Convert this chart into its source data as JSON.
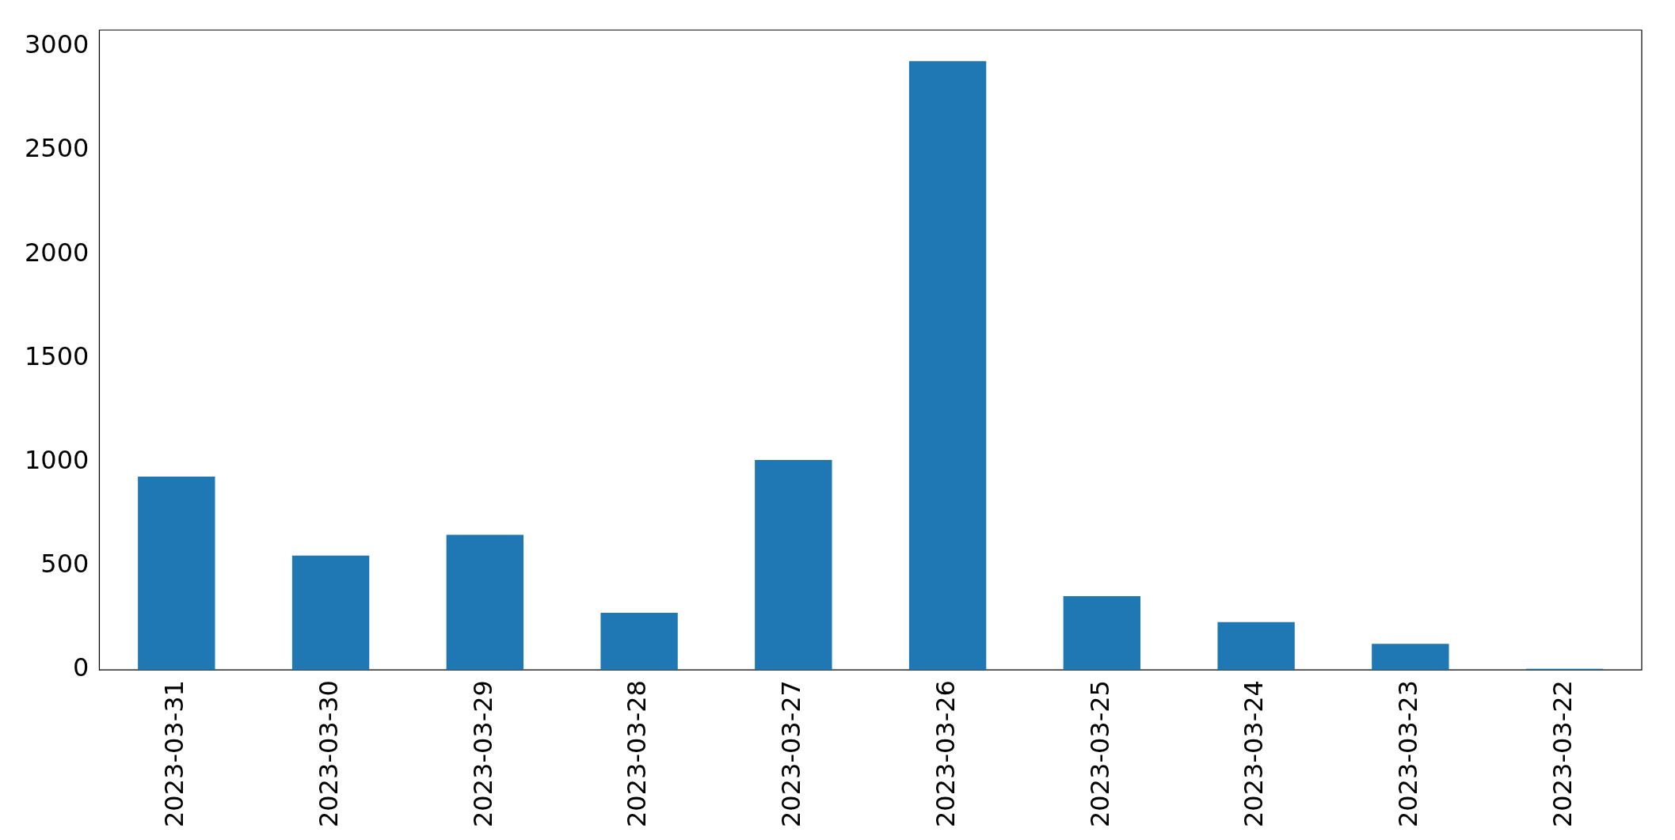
{
  "chart_data": {
    "type": "bar",
    "categories": [
      "2023-03-31",
      "2023-03-30",
      "2023-03-29",
      "2023-03-28",
      "2023-03-27",
      "2023-03-26",
      "2023-03-25",
      "2023-03-24",
      "2023-03-23",
      "2023-03-22"
    ],
    "values": [
      930,
      550,
      650,
      275,
      1010,
      2930,
      355,
      230,
      125,
      5
    ],
    "color": "#1f77b4",
    "ylim": [
      0,
      3080
    ],
    "yticks": [
      0,
      500,
      1000,
      1500,
      2000,
      2500,
      3000
    ],
    "grid": false,
    "legend": false
  }
}
